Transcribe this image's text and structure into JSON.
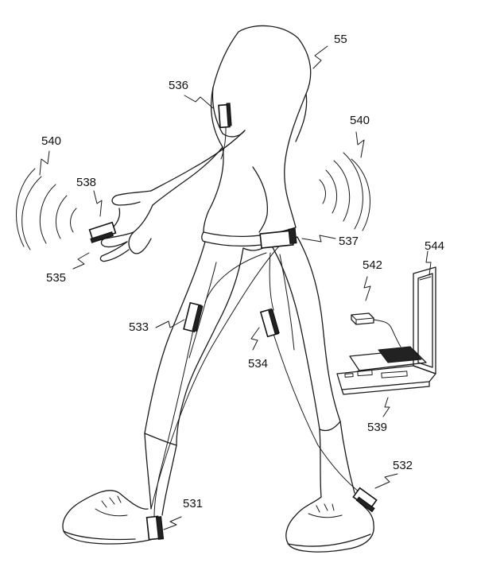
{
  "figure": {
    "reference_numerals": {
      "person": "55",
      "sensor_left_shoe": "531",
      "sensor_right_shoe": "532",
      "sensor_left_thigh": "533",
      "sensor_right_thigh": "534",
      "sensor_finger": "535",
      "sensor_chest": "536",
      "sensor_belt": "537",
      "sensor_wrist": "538",
      "computer": "539",
      "wireless_signal_left": "540",
      "wireless_signal_right": "540",
      "receiver_dongle": "542",
      "laptop_screen": "544"
    }
  }
}
